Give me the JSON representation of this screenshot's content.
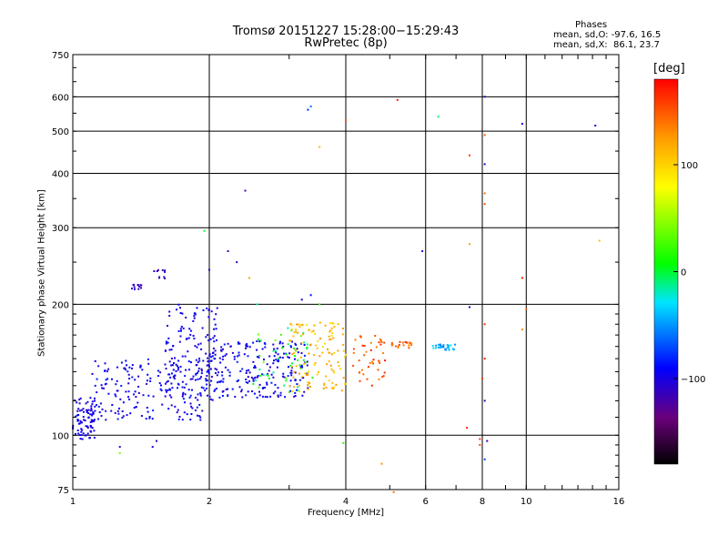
{
  "chart_data": {
    "type": "scatter",
    "title": "Tromsø 20151227 15:28:00−15:29:43",
    "subtitle": "RwPretec (8p)",
    "stats": {
      "heading": "Phases",
      "line1": "mean, sd,O: -97.6, 16.5",
      "line2": "mean, sd,X:  86.1, 23.7"
    },
    "xlabel": "Frequency [MHz]",
    "ylabel": "Stationary phase Virtual Height [km]",
    "xscale": "log",
    "yscale": "log",
    "xlim": [
      1,
      16
    ],
    "ylim": [
      75,
      750
    ],
    "xticks": [
      1,
      2,
      4,
      6,
      8,
      10,
      16
    ],
    "xtick_labels": [
      "1",
      "2",
      "4",
      "6",
      "8",
      "10",
      "16"
    ],
    "yticks": [
      75,
      100,
      200,
      300,
      400,
      500,
      600,
      750
    ],
    "ytick_labels": [
      "75",
      "100",
      "200",
      "300",
      "400",
      "500",
      "600",
      "750"
    ],
    "grid": true,
    "colorbar": {
      "label": "[deg]",
      "range": [
        -180,
        180
      ],
      "ticks": [
        -100,
        0,
        100
      ],
      "tick_labels": [
        "−100",
        "0",
        "100"
      ]
    },
    "clusters": [
      {
        "f": [
          1.0,
          1.12
        ],
        "h": [
          98,
          122
        ],
        "phase": [
          -110,
          -90
        ],
        "n": 80
      },
      {
        "f": [
          1.1,
          2.0
        ],
        "h": [
          108,
          150
        ],
        "phase": [
          -110,
          -80
        ],
        "n": 200
      },
      {
        "f": [
          1.6,
          2.1
        ],
        "h": [
          120,
          200
        ],
        "phase": [
          -110,
          -85
        ],
        "n": 130
      },
      {
        "f": [
          2.0,
          3.3
        ],
        "h": [
          122,
          165
        ],
        "phase": [
          -110,
          -80
        ],
        "n": 220
      },
      {
        "f": [
          2.5,
          3.4
        ],
        "h": [
          125,
          180
        ],
        "phase": [
          -20,
          40
        ],
        "n": 50
      },
      {
        "f": [
          3.0,
          4.0
        ],
        "h": [
          126,
          182
        ],
        "phase": [
          90,
          130
        ],
        "n": 120
      },
      {
        "f": [
          4.1,
          4.9
        ],
        "h": [
          130,
          170
        ],
        "phase": [
          130,
          170
        ],
        "n": 45
      },
      {
        "f": [
          5.0,
          5.6
        ],
        "h": [
          158,
          164
        ],
        "phase": [
          130,
          165
        ],
        "n": 20
      },
      {
        "f": [
          6.2,
          7.0
        ],
        "h": [
          157,
          162
        ],
        "phase": [
          -60,
          -30
        ],
        "n": 30
      },
      {
        "f": [
          1.35,
          1.42
        ],
        "h": [
          216,
          222
        ],
        "phase": [
          -120,
          -100
        ],
        "n": 12
      },
      {
        "f": [
          1.5,
          1.6
        ],
        "h": [
          228,
          240
        ],
        "phase": [
          -120,
          -100
        ],
        "n": 10
      }
    ],
    "points": [
      {
        "f": 3.3,
        "h": 560,
        "phase": -80
      },
      {
        "f": 3.35,
        "h": 570,
        "phase": -60
      },
      {
        "f": 3.5,
        "h": 460,
        "phase": 110
      },
      {
        "f": 4.0,
        "h": 530,
        "phase": 150
      },
      {
        "f": 5.2,
        "h": 590,
        "phase": 170
      },
      {
        "f": 6.4,
        "h": 540,
        "phase": -10
      },
      {
        "f": 8.1,
        "h": 600,
        "phase": -110
      },
      {
        "f": 8.1,
        "h": 490,
        "phase": 150
      },
      {
        "f": 8.1,
        "h": 420,
        "phase": -110
      },
      {
        "f": 8.1,
        "h": 360,
        "phase": 140
      },
      {
        "f": 8.1,
        "h": 340,
        "phase": 150
      },
      {
        "f": 9.8,
        "h": 520,
        "phase": -100
      },
      {
        "f": 14.2,
        "h": 515,
        "phase": -100
      },
      {
        "f": 2.4,
        "h": 365,
        "phase": -120
      },
      {
        "f": 7.5,
        "h": 440,
        "phase": 160
      },
      {
        "f": 5.9,
        "h": 265,
        "phase": -110
      },
      {
        "f": 7.5,
        "h": 275,
        "phase": 120
      },
      {
        "f": 9.8,
        "h": 230,
        "phase": 170
      },
      {
        "f": 14.5,
        "h": 280,
        "phase": 110
      },
      {
        "f": 7.5,
        "h": 197,
        "phase": -110
      },
      {
        "f": 10.0,
        "h": 195,
        "phase": 150
      },
      {
        "f": 8.1,
        "h": 180,
        "phase": 160
      },
      {
        "f": 9.8,
        "h": 175,
        "phase": 130
      },
      {
        "f": 8.1,
        "h": 150,
        "phase": 170
      },
      {
        "f": 8.0,
        "h": 135,
        "phase": 160
      },
      {
        "f": 8.1,
        "h": 120,
        "phase": -110
      },
      {
        "f": 7.4,
        "h": 104,
        "phase": 170
      },
      {
        "f": 7.9,
        "h": 98,
        "phase": 160
      },
      {
        "f": 8.2,
        "h": 97,
        "phase": -110
      },
      {
        "f": 7.9,
        "h": 95,
        "phase": 150
      },
      {
        "f": 8.1,
        "h": 88,
        "phase": -70
      },
      {
        "f": 5.1,
        "h": 74,
        "phase": 140
      },
      {
        "f": 4.8,
        "h": 86,
        "phase": 130
      },
      {
        "f": 3.95,
        "h": 96,
        "phase": 20
      },
      {
        "f": 1.27,
        "h": 91,
        "phase": 40
      },
      {
        "f": 1.27,
        "h": 94,
        "phase": -110
      },
      {
        "f": 1.53,
        "h": 97,
        "phase": -110
      },
      {
        "f": 1.5,
        "h": 94,
        "phase": -100
      },
      {
        "f": 1.05,
        "h": 98,
        "phase": -100
      },
      {
        "f": 2.3,
        "h": 250,
        "phase": -110
      },
      {
        "f": 2.2,
        "h": 265,
        "phase": -120
      },
      {
        "f": 2.0,
        "h": 240,
        "phase": -110
      },
      {
        "f": 1.95,
        "h": 295,
        "phase": 0
      },
      {
        "f": 2.45,
        "h": 230,
        "phase": 120
      },
      {
        "f": 2.55,
        "h": 200,
        "phase": -20
      },
      {
        "f": 3.2,
        "h": 205,
        "phase": -100
      },
      {
        "f": 3.35,
        "h": 210,
        "phase": -90
      },
      {
        "f": 3.5,
        "h": 200,
        "phase": 20
      }
    ]
  }
}
